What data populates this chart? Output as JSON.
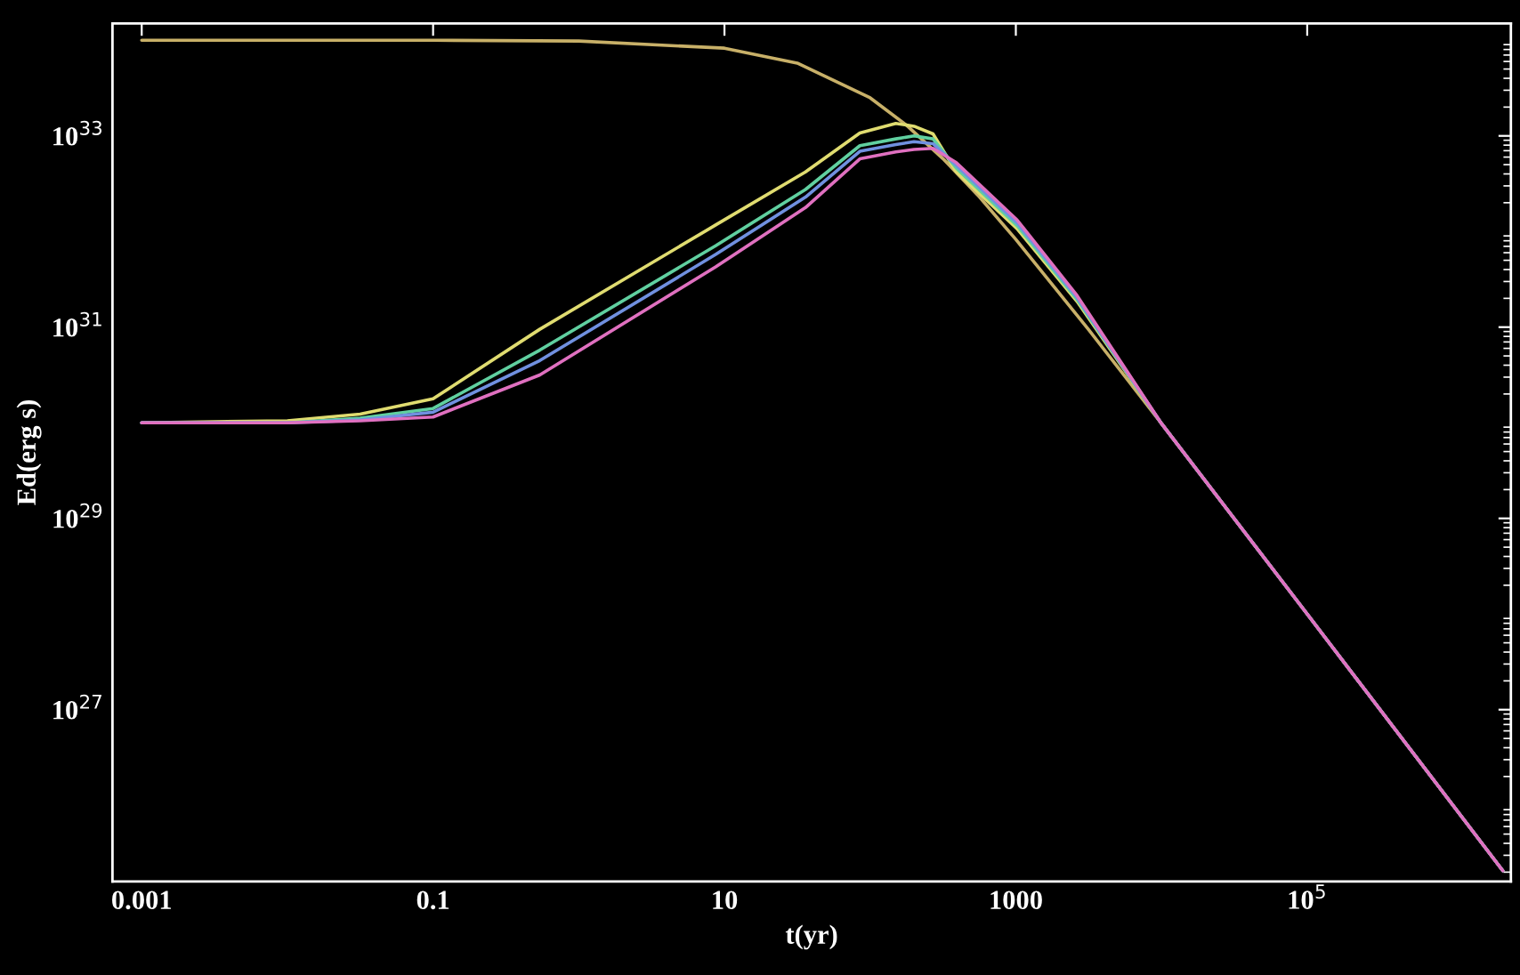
{
  "chart_data": {
    "type": "line",
    "xlabel": "t(yr)",
    "ylabel": "Ed(erg s)",
    "log": "xy",
    "grid": false,
    "legend": false,
    "xlim": [
      0.00063,
      2500000.0
    ],
    "ylim": [
      1.6e+25,
      1.5e+34
    ],
    "xticks": [
      0.001,
      0.1,
      10,
      1000,
      {
        "value": 100000,
        "label": "10$^{5}$"
      }
    ],
    "yticks": [
      {
        "value": 1e+27,
        "label": "10$^{27}$"
      },
      {
        "value": 1e+29,
        "label": "10$^{29}$"
      },
      {
        "value": 1e+31,
        "label": "10$^{31}$"
      },
      {
        "value": 1e+33,
        "label": "10$^{33}$"
      }
    ],
    "series": [
      {
        "color": "#c8b068",
        "x": [
          0.001,
          0.01,
          0.1,
          1,
          10,
          31.6,
          100,
          178,
          316,
          562,
          1000,
          3162,
          10000,
          100000,
          2200000
        ],
        "values": [
          1e+34,
          1e+34,
          1e+34,
          9.8e+33,
          8.26e+33,
          5.77e+33,
          2.5e+33,
          1.29e+33,
          5.78e+32,
          2.3e+32,
          8.26e+31,
          9.4e+30,
          9.8e+29,
          1e+28,
          2.07e+25
        ]
      },
      {
        "color": "#e0dc70",
        "x": [
          0.001,
          0.01,
          0.0316,
          0.1,
          0.54,
          8.7,
          36,
          85,
          150,
          200,
          270,
          390,
          1020,
          2630,
          10000,
          100000,
          2200000
        ],
        "values": [
          1e+30,
          1.05e+30,
          1.23e+30,
          1.78e+30,
          9.5e+30,
          1.17e+32,
          4.2e+32,
          1.07e+33,
          1.35e+33,
          1.26e+33,
          1.05e+33,
          4.2e+32,
          1.07e+32,
          1.86e+31,
          9.8e+29,
          1e+28,
          2.07e+25
        ]
      },
      {
        "color": "#60d0a0",
        "x": [
          0.001,
          0.01,
          0.0316,
          0.1,
          0.54,
          8.7,
          36,
          85,
          150,
          200,
          270,
          390,
          1020,
          2630,
          10000,
          100000,
          2200000
        ],
        "values": [
          1e+30,
          1e+30,
          1.12e+30,
          1.41e+30,
          5.75e+30,
          7.1e+31,
          2.75e+32,
          7.9e+32,
          9.3e+32,
          1e+33,
          9.3e+32,
          4.6e+32,
          1.15e+32,
          1.95e+31,
          9.8e+29,
          1e+28,
          2.07e+25
        ]
      },
      {
        "color": "#7090e0",
        "x": [
          0.001,
          0.01,
          0.0316,
          0.1,
          0.54,
          8.7,
          36,
          85,
          150,
          200,
          270,
          390,
          1020,
          2630,
          10000,
          100000,
          2200000
        ],
        "values": [
          1e+30,
          1e+30,
          1.07e+30,
          1.29e+30,
          4.47e+30,
          5.75e+31,
          2.29e+32,
          6.9e+32,
          8.1e+32,
          8.7e+32,
          8.3e+32,
          4.9e+32,
          1.23e+32,
          2.04e+31,
          9.8e+29,
          1e+28,
          2.07e+25
        ]
      },
      {
        "color": "#e070c0",
        "x": [
          0.001,
          0.01,
          0.0316,
          0.1,
          0.54,
          8.7,
          36,
          85,
          150,
          200,
          270,
          390,
          1020,
          2630,
          10000,
          100000,
          2200000
        ],
        "values": [
          1e+30,
          1e+30,
          1.05e+30,
          1.15e+30,
          3.16e+30,
          4.27e+31,
          1.78e+32,
          5.75e+32,
          6.8e+32,
          7.2e+32,
          7.4e+32,
          5.25e+32,
          1.32e+32,
          2.14e+31,
          9.8e+29,
          1e+28,
          2.07e+25
        ]
      }
    ]
  }
}
